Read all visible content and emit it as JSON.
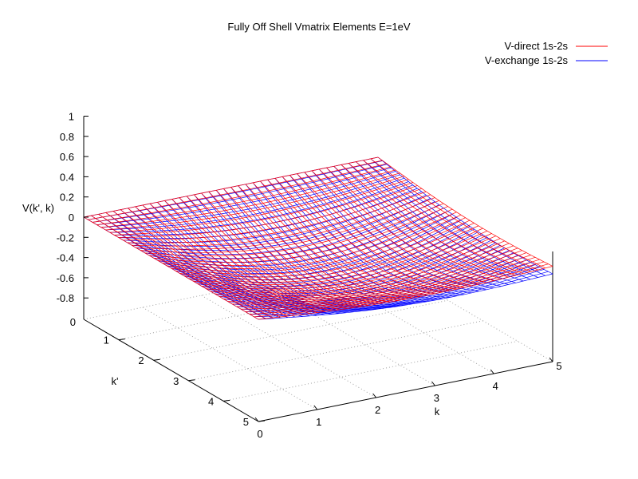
{
  "chart_data": {
    "type": "surface",
    "title": "Fully Off Shell Vmatrix Elements E=1eV",
    "xlabel": "k",
    "ylabel": "k'",
    "zlabel": "V(k', k)",
    "xlim": [
      0,
      5
    ],
    "ylim": [
      0,
      5
    ],
    "zlim": [
      -1,
      1
    ],
    "x_ticks": [
      "0",
      "1",
      "2",
      "3",
      "4",
      "5"
    ],
    "y_ticks": [
      "0",
      "1",
      "2",
      "3",
      "4",
      "5"
    ],
    "z_ticks": [
      "-0.8",
      "-0.6",
      "-0.4",
      "-0.2",
      "0",
      "0.2",
      "0.4",
      "0.6",
      "0.8",
      "1"
    ],
    "grid": "on (base plane, dotted)",
    "legend_position": "top-right",
    "series": [
      {
        "name": "V-direct 1s-2s",
        "color": "#ff0000",
        "corner_values": {
          "k0_kp0": 0.0,
          "k5_kp0": 0.0,
          "k0_kp5": 0.0,
          "k5_kp5": -0.05
        },
        "peak_value": -0.32
      },
      {
        "name": "V-exchange 1s-2s",
        "color": "#0000ff",
        "corner_values": {
          "k0_kp0": 0.0,
          "k5_kp0": 0.0,
          "k0_kp5": 0.0,
          "k5_kp5": -0.12
        },
        "peak_value": -0.42
      }
    ]
  }
}
